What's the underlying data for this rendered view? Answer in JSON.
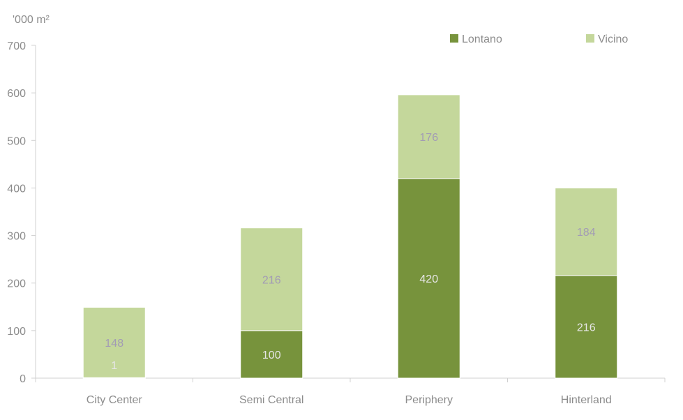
{
  "chart_data": {
    "type": "bar",
    "stacked": true,
    "unit_label": "'000 m²",
    "categories": [
      "City Center",
      "Semi Central",
      "Periphery",
      "Hinterland"
    ],
    "series": [
      {
        "name": "Lontano",
        "values": [
          1,
          100,
          420,
          216
        ],
        "color": "#77933c",
        "label_color": "#e6e6e6"
      },
      {
        "name": "Vicino",
        "values": [
          148,
          216,
          176,
          184
        ],
        "color": "#c4d79b",
        "label_color": "#a29bb5"
      }
    ],
    "ylim": [
      0,
      700
    ],
    "yticks": [
      0,
      100,
      200,
      300,
      400,
      500,
      600,
      700
    ],
    "grid": false,
    "legend": "top-right"
  }
}
